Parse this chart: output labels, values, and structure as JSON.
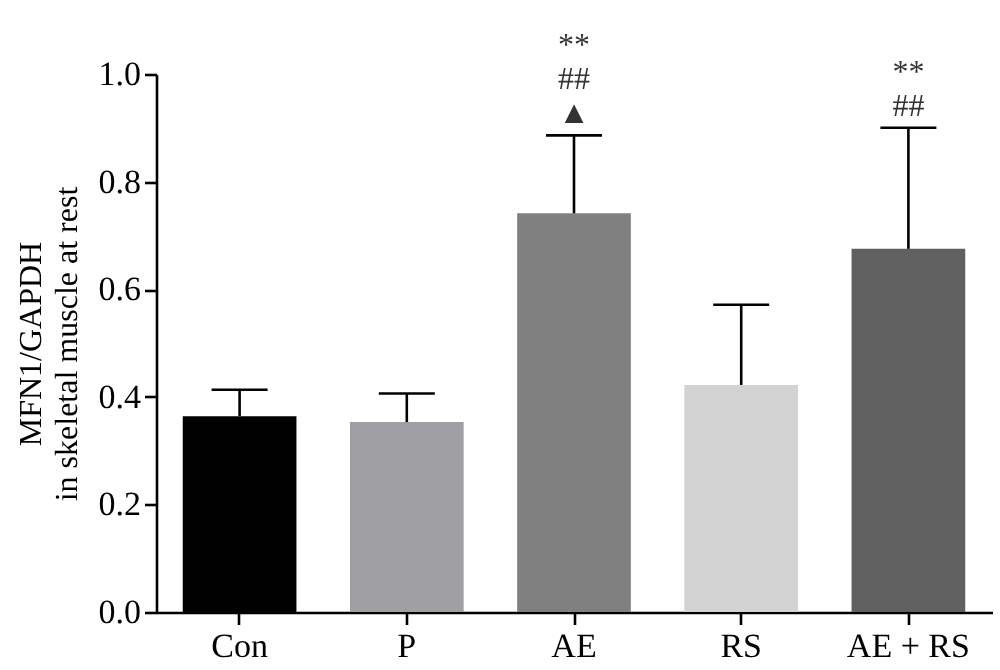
{
  "chart_data": {
    "type": "bar",
    "ylabel": "MFN1/GAPDH\nin skeletal muscle at rest",
    "categories": [
      "Con",
      "P",
      "AE",
      "RS",
      "AE + RS"
    ],
    "values": [
      0.364,
      0.353,
      0.741,
      0.422,
      0.675
    ],
    "colors": [
      "#000000",
      "#a0a0a4",
      "#808080",
      "#d3d3d3",
      "#606060"
    ],
    "errors": [
      [
        0.364,
        0.413
      ],
      [
        0.353,
        0.406
      ],
      [
        0.741,
        0.886
      ],
      [
        0.422,
        0.571
      ],
      [
        0.675,
        0.9
      ]
    ],
    "ylim": [
      0,
      1
    ],
    "yticks": [
      {
        "value": 0,
        "label": "0.0"
      },
      {
        "value": 0.2,
        "label": "0.2"
      },
      {
        "value": 0.4,
        "label": "0.4"
      },
      {
        "value": 0.6,
        "label": "0.6"
      },
      {
        "value": 0.8,
        "label": "0.8"
      },
      {
        "value": 1,
        "label": "1.0"
      }
    ],
    "grid": false,
    "legend": false,
    "annotations": [
      {
        "text": "▲",
        "x": "AE",
        "y": 0.886
      },
      {
        "text": "##",
        "x": "AE",
        "y": 0.886
      },
      {
        "text": "**",
        "x": "AE",
        "y": 0.886
      },
      {
        "text": "##",
        "x": "AE + RS",
        "y": 0.9
      },
      {
        "text": "**",
        "x": "AE + RS",
        "y": 0.9
      }
    ]
  }
}
